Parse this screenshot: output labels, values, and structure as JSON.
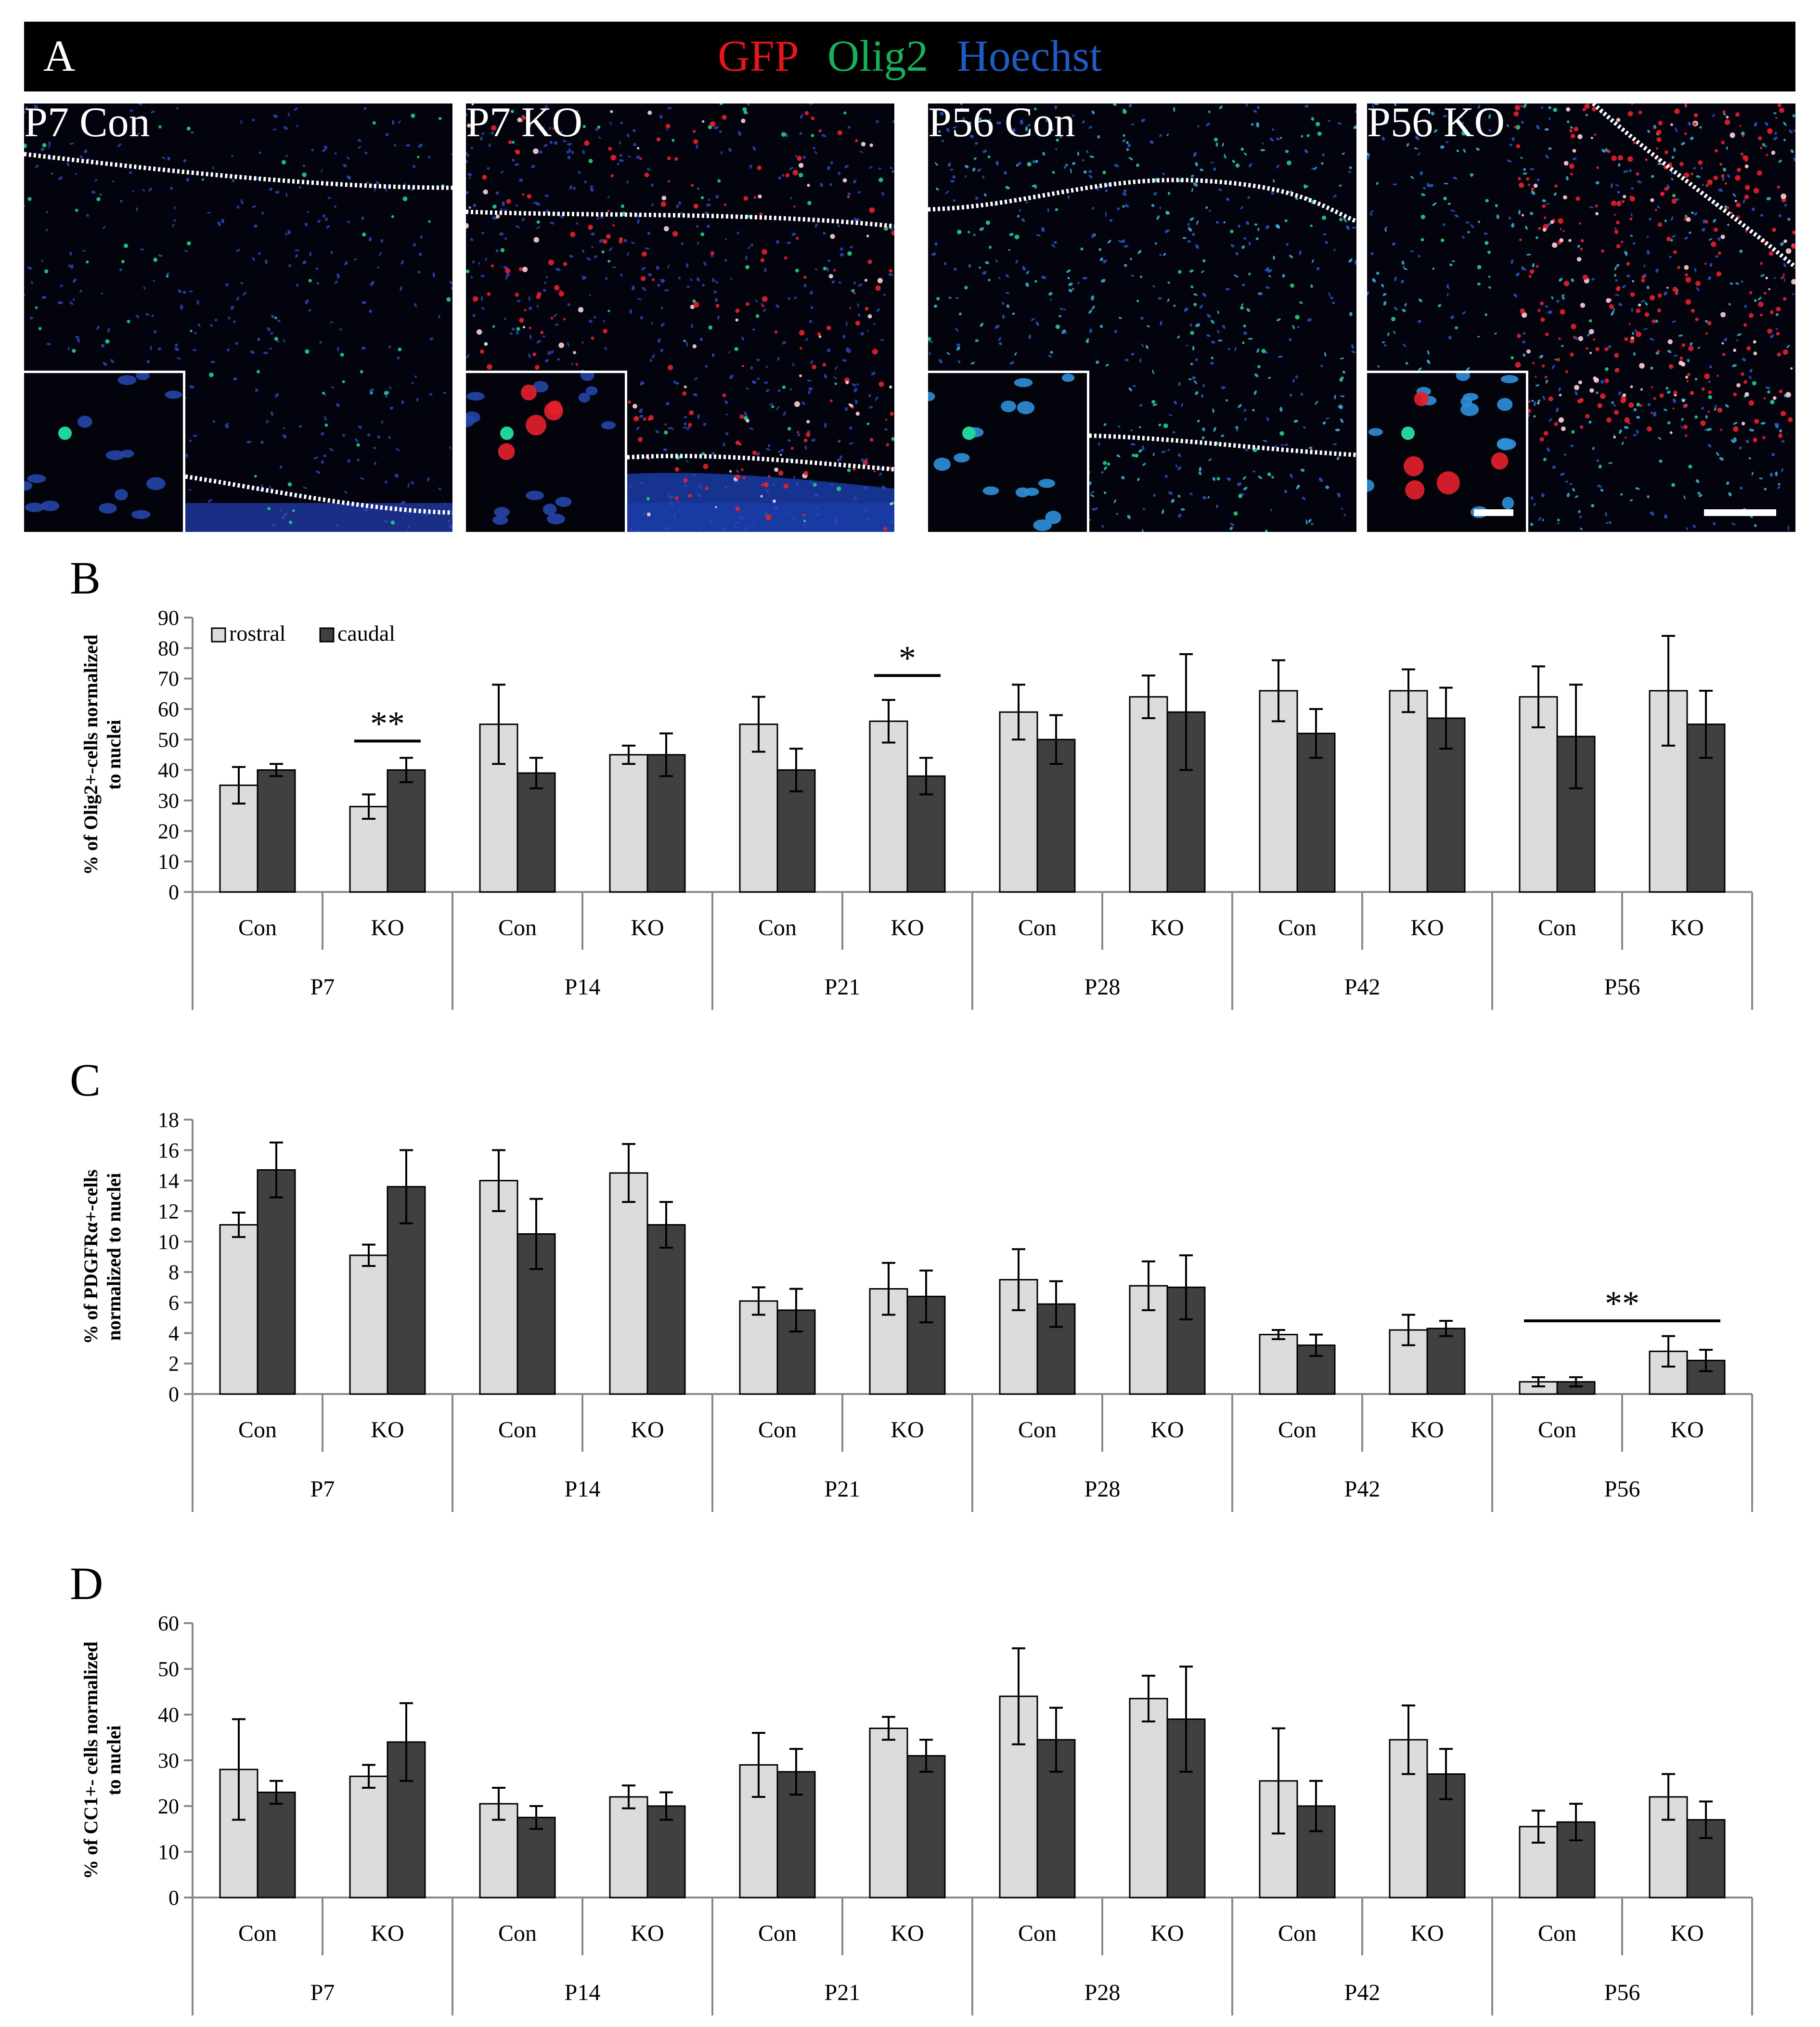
{
  "figure": {
    "panel_a_label": "A",
    "stains": [
      {
        "label": "GFP",
        "color": "#e8141c"
      },
      {
        "label": "Olig2",
        "color": "#18b058"
      },
      {
        "label": "Hoechst",
        "color": "#1e5bc4"
      }
    ],
    "micrographs": [
      {
        "label": "P7 Con"
      },
      {
        "label": "P7 KO"
      },
      {
        "label": "P56 Con"
      },
      {
        "label": "P56 KO"
      }
    ]
  },
  "chart_data": [
    {
      "panel": "B",
      "type": "bar",
      "ylabel_lines": [
        "% of Olig2+-cells normalized",
        "to nuclei"
      ],
      "ylim": [
        0,
        90
      ],
      "yticks": [
        0,
        10,
        20,
        30,
        40,
        50,
        60,
        70,
        80,
        90
      ],
      "legend": [
        "rostral",
        "caudal"
      ],
      "groups": [
        "P7",
        "P14",
        "P21",
        "P28",
        "P42",
        "P56"
      ],
      "subgroups": [
        "Con",
        "KO"
      ],
      "series": [
        {
          "name": "rostral",
          "color": "#dcdcdc",
          "values": [
            35,
            28,
            55,
            45,
            55,
            56,
            59,
            64,
            66,
            66,
            64,
            66
          ],
          "errors": [
            6,
            4,
            13,
            3,
            9,
            7,
            9,
            7,
            10,
            7,
            10,
            18
          ]
        },
        {
          "name": "caudal",
          "color": "#404040",
          "values": [
            40,
            40,
            39,
            45,
            40,
            38,
            50,
            59,
            52,
            57,
            51,
            55
          ],
          "errors": [
            2,
            4,
            5,
            7,
            7,
            6,
            8,
            19,
            8,
            10,
            17,
            11
          ]
        }
      ],
      "significance": [
        {
          "label": "**",
          "from_bar": 2,
          "to_bar": 3,
          "y": 49.5
        },
        {
          "label": "*",
          "from_bar": 10,
          "to_bar": 11,
          "y": 71
        }
      ]
    },
    {
      "panel": "C",
      "type": "bar",
      "ylabel_lines": [
        "% of PDGFRα+-cells",
        "normalized to nuclei"
      ],
      "ylim": [
        0,
        18
      ],
      "yticks": [
        0,
        2,
        4,
        6,
        8,
        10,
        12,
        14,
        16,
        18
      ],
      "groups": [
        "P7",
        "P14",
        "P21",
        "P28",
        "P42",
        "P56"
      ],
      "subgroups": [
        "Con",
        "KO"
      ],
      "series": [
        {
          "name": "rostral",
          "color": "#dcdcdc",
          "values": [
            11.1,
            9.1,
            14.0,
            14.5,
            6.1,
            6.9,
            7.5,
            7.1,
            3.9,
            4.2,
            0.8,
            2.8
          ],
          "errors": [
            0.8,
            0.7,
            2.0,
            1.9,
            0.9,
            1.7,
            2.0,
            1.6,
            0.3,
            1.0,
            0.3,
            1.0
          ]
        },
        {
          "name": "caudal",
          "color": "#404040",
          "values": [
            14.7,
            13.6,
            10.5,
            11.1,
            5.5,
            6.4,
            5.9,
            7.0,
            3.2,
            4.3,
            0.8,
            2.2
          ],
          "errors": [
            1.8,
            2.4,
            2.3,
            1.5,
            1.4,
            1.7,
            1.5,
            2.1,
            0.7,
            0.5,
            0.3,
            0.7
          ]
        }
      ],
      "significance": [
        {
          "label": "**",
          "from_bar": 20,
          "to_bar": 23,
          "y": 4.8
        }
      ]
    },
    {
      "panel": "D",
      "type": "bar",
      "ylabel_lines": [
        "% of CC1+- cells normalized",
        "to nuclei"
      ],
      "ylim": [
        0,
        60
      ],
      "yticks": [
        0,
        10,
        20,
        30,
        40,
        50,
        60
      ],
      "groups": [
        "P7",
        "P14",
        "P21",
        "P28",
        "P42",
        "P56"
      ],
      "subgroups": [
        "Con",
        "KO"
      ],
      "series": [
        {
          "name": "rostral",
          "color": "#dcdcdc",
          "values": [
            28,
            26.5,
            20.5,
            22,
            29,
            37,
            44,
            43.5,
            25.5,
            34.5,
            15.5,
            22
          ],
          "errors": [
            11,
            2.5,
            3.5,
            2.5,
            7,
            2.5,
            10.5,
            5,
            11.5,
            7.5,
            3.5,
            5
          ]
        },
        {
          "name": "caudal",
          "color": "#404040",
          "values": [
            23,
            34,
            17.5,
            20,
            27.5,
            31,
            34.5,
            39,
            20,
            27,
            16.5,
            17
          ],
          "errors": [
            2.5,
            8.5,
            2.5,
            3,
            5,
            3.5,
            7,
            11.5,
            5.5,
            5.5,
            4,
            4
          ]
        }
      ],
      "significance": []
    }
  ]
}
